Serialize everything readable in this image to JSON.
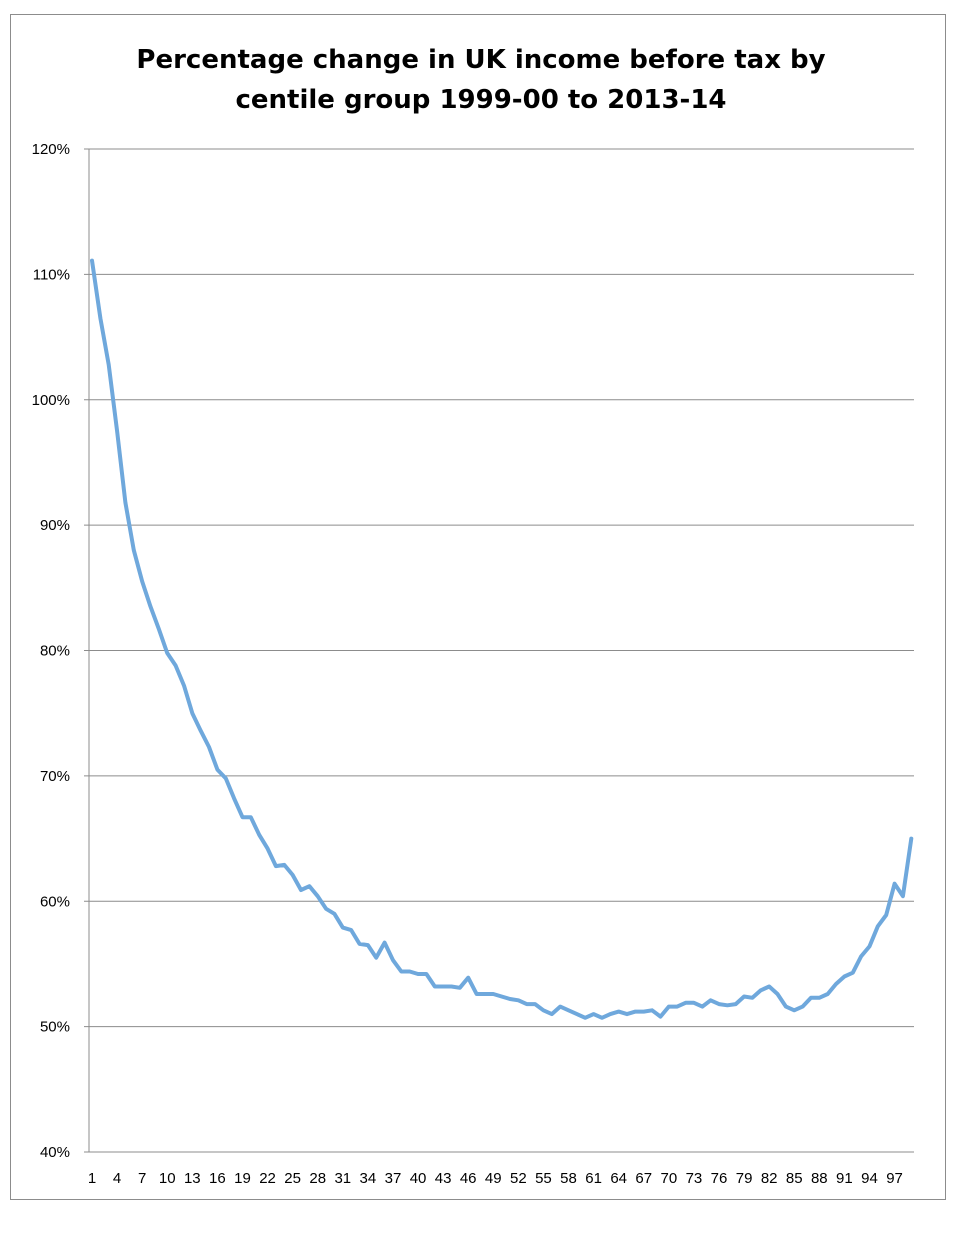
{
  "chart_data": {
    "type": "line",
    "title_lines": [
      "Percentage change in UK income before tax by",
      "centile group 1999-00 to 2013-14"
    ],
    "xlabel": "",
    "ylabel": "",
    "ylim": [
      40,
      120
    ],
    "y_ticks": [
      40,
      50,
      60,
      70,
      80,
      90,
      100,
      110,
      120
    ],
    "y_tick_labels": [
      "40%",
      "50%",
      "60%",
      "70%",
      "80%",
      "90%",
      "100%",
      "110%",
      "120%"
    ],
    "x_tick_labels": [
      "1",
      "4",
      "7",
      "10",
      "13",
      "16",
      "19",
      "22",
      "25",
      "28",
      "31",
      "34",
      "37",
      "40",
      "43",
      "46",
      "49",
      "52",
      "55",
      "58",
      "61",
      "64",
      "67",
      "70",
      "73",
      "76",
      "79",
      "82",
      "85",
      "88",
      "91",
      "94",
      "97"
    ],
    "x": [
      1,
      2,
      3,
      4,
      5,
      6,
      7,
      8,
      9,
      10,
      11,
      12,
      13,
      14,
      15,
      16,
      17,
      18,
      19,
      20,
      21,
      22,
      23,
      24,
      25,
      26,
      27,
      28,
      29,
      30,
      31,
      32,
      33,
      34,
      35,
      36,
      37,
      38,
      39,
      40,
      41,
      42,
      43,
      44,
      45,
      46,
      47,
      48,
      49,
      50,
      51,
      52,
      53,
      54,
      55,
      56,
      57,
      58,
      59,
      60,
      61,
      62,
      63,
      64,
      65,
      66,
      67,
      68,
      69,
      70,
      71,
      72,
      73,
      74,
      75,
      76,
      77,
      78,
      79,
      80,
      81,
      82,
      83,
      84,
      85,
      86,
      87,
      88,
      89,
      90,
      91,
      92,
      93,
      94,
      95,
      96,
      97,
      98,
      99
    ],
    "values": [
      111.1,
      106.5,
      102.8,
      97.5,
      91.8,
      88.0,
      85.5,
      83.5,
      81.7,
      79.8,
      78.8,
      77.2,
      75.0,
      73.6,
      72.3,
      70.5,
      69.8,
      68.2,
      66.7,
      66.7,
      65.3,
      64.2,
      62.8,
      62.9,
      62.1,
      60.9,
      61.2,
      60.4,
      59.4,
      59.0,
      57.9,
      57.7,
      56.6,
      56.5,
      55.5,
      56.7,
      55.3,
      54.4,
      54.4,
      54.2,
      54.2,
      53.2,
      53.2,
      53.2,
      53.1,
      53.9,
      52.6,
      52.6,
      52.6,
      52.4,
      52.2,
      52.1,
      51.8,
      51.8,
      51.3,
      51.0,
      51.6,
      51.3,
      51.0,
      50.7,
      51.0,
      50.7,
      51.0,
      51.2,
      51.0,
      51.2,
      51.2,
      51.3,
      50.8,
      51.6,
      51.6,
      51.9,
      51.9,
      51.6,
      52.1,
      51.8,
      51.7,
      51.8,
      52.4,
      52.3,
      52.9,
      53.2,
      52.6,
      51.6,
      51.3,
      51.6,
      52.3,
      52.3,
      52.6,
      53.4,
      54.0,
      54.3,
      55.6,
      56.4,
      58.0,
      58.9,
      61.4,
      60.4,
      65.0
    ],
    "series_color": "#6fa8dc",
    "grid": true,
    "legend": "none"
  }
}
